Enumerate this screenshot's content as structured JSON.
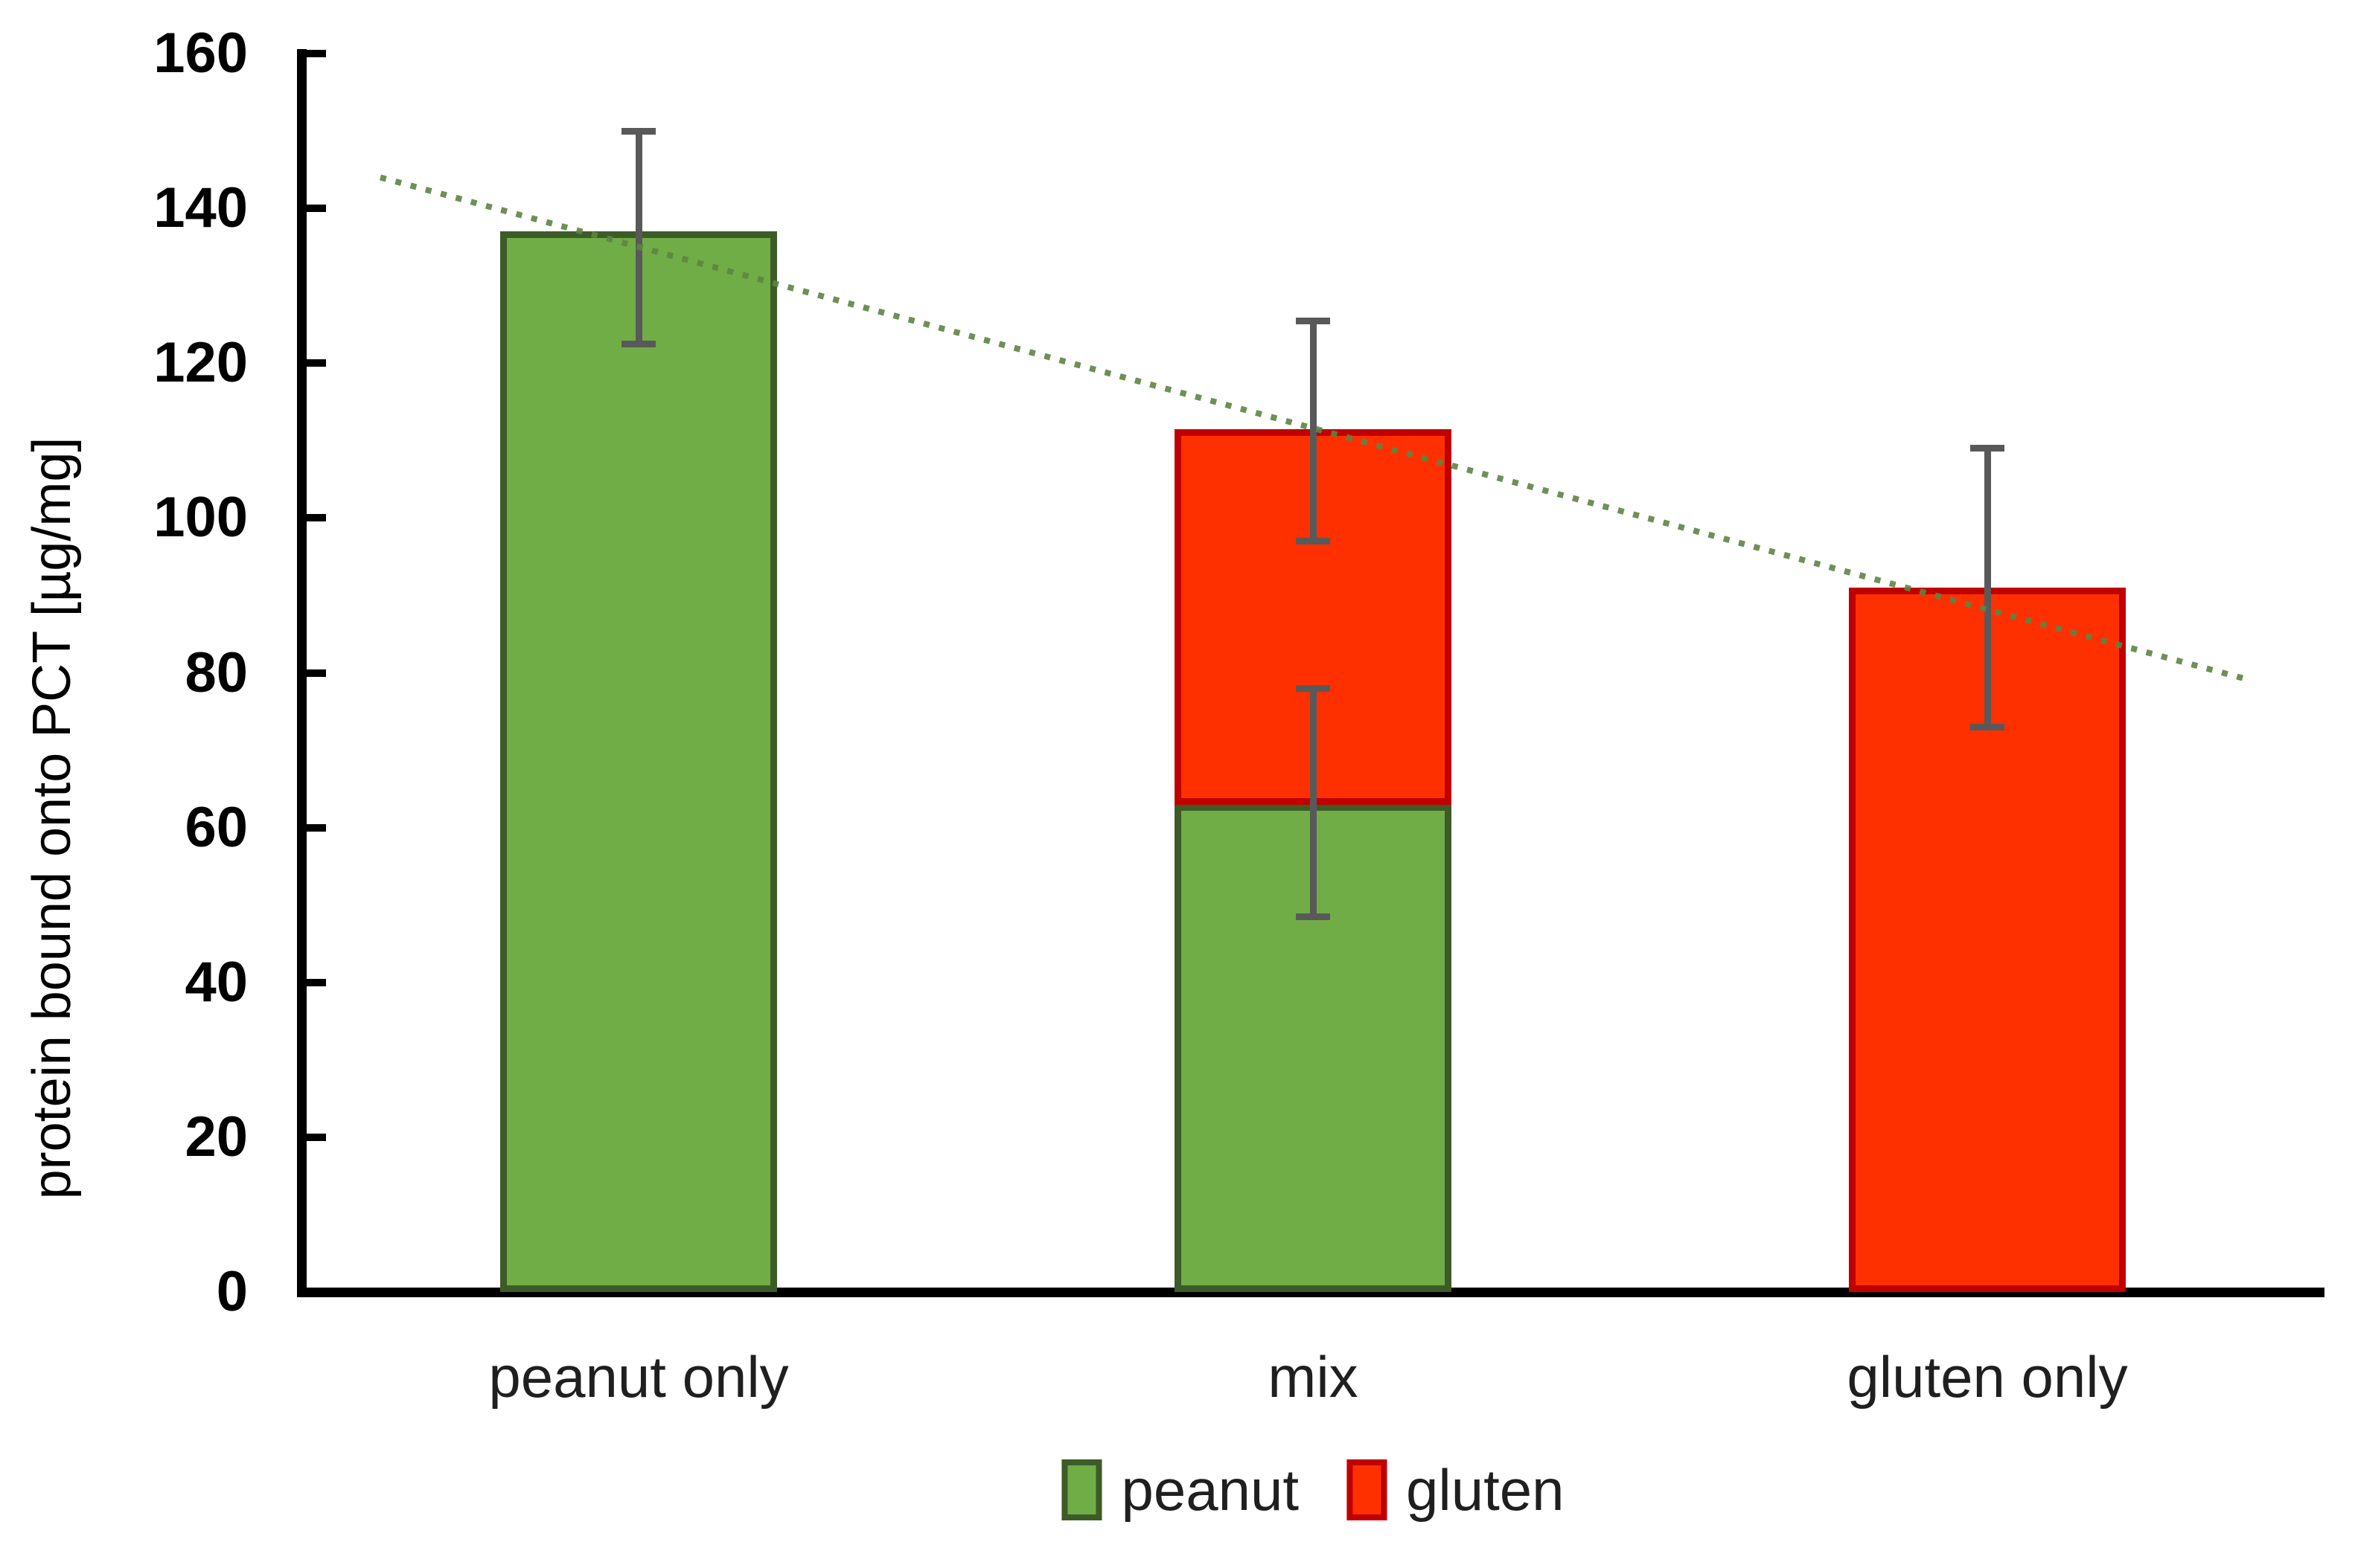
{
  "chart_data": {
    "type": "bar",
    "stacked": true,
    "title": "",
    "ylabel": "protein bound onto PCT [µg/mg]",
    "xlabel": "",
    "ylim": [
      0,
      160
    ],
    "ytick_step": 20,
    "yticks": [
      0,
      20,
      40,
      60,
      80,
      100,
      120,
      140,
      160
    ],
    "grid": false,
    "legend_position": "bottom",
    "axis_color": "#000000",
    "categories": [
      "peanut only",
      "mix",
      "gluten only"
    ],
    "series": [
      {
        "name": "peanut",
        "color": "#70ad47",
        "border_color": "#3d5b27",
        "values": [
          137,
          63,
          0
        ]
      },
      {
        "name": "gluten",
        "color": "#ff3000",
        "border_color": "#c00000",
        "values": [
          0,
          48.5,
          91
        ]
      }
    ],
    "totals": [
      137,
      111.5,
      91
    ],
    "error_bars": [
      {
        "category_index": 0,
        "center": 137,
        "low": 122.5,
        "high": 150
      },
      {
        "category_index": 1,
        "center": 63,
        "low": 48.5,
        "high": 78
      },
      {
        "category_index": 1,
        "center": 111.5,
        "low": 97,
        "high": 125.5
      },
      {
        "category_index": 2,
        "center": 91,
        "low": 73,
        "high": 109
      }
    ],
    "error_bar_color": "#595959",
    "trendline": {
      "style": "dotted",
      "color": "#5e8444",
      "x_start_frac": 0.039,
      "y_start": 144,
      "x_end_frac": 0.964,
      "y_end": 79
    },
    "legend": {
      "entries": [
        {
          "label": "peanut",
          "color": "#70ad47",
          "border_color": "#3d5b27"
        },
        {
          "label": "gluten",
          "color": "#ff3000",
          "border_color": "#c00000"
        }
      ]
    }
  }
}
